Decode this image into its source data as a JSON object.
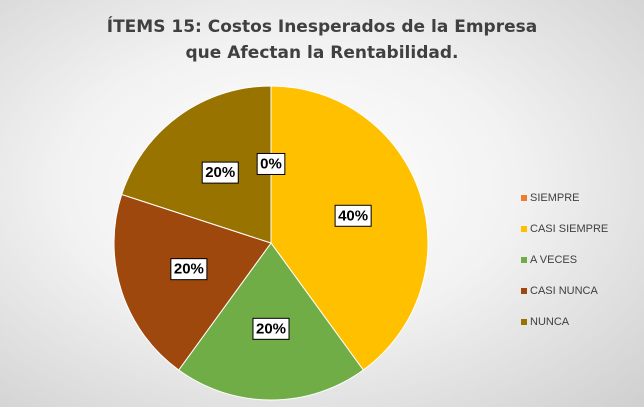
{
  "chart_data": {
    "type": "pie",
    "title": "ÍTEMS 15: Costos Inesperados de la Empresa que Afectan la Rentabilidad.",
    "categories": [
      "SIEMPRE",
      "CASI SIEMPRE",
      "A VECES",
      "CASI NUNCA",
      "NUNCA"
    ],
    "values": [
      0,
      40,
      20,
      20,
      20
    ],
    "value_labels": [
      "0%",
      "40%",
      "20%",
      "20%",
      "20%"
    ],
    "colors": [
      "#ED7D31",
      "#FFC000",
      "#70AD47",
      "#9E480E",
      "#997300"
    ],
    "legend": "right"
  }
}
